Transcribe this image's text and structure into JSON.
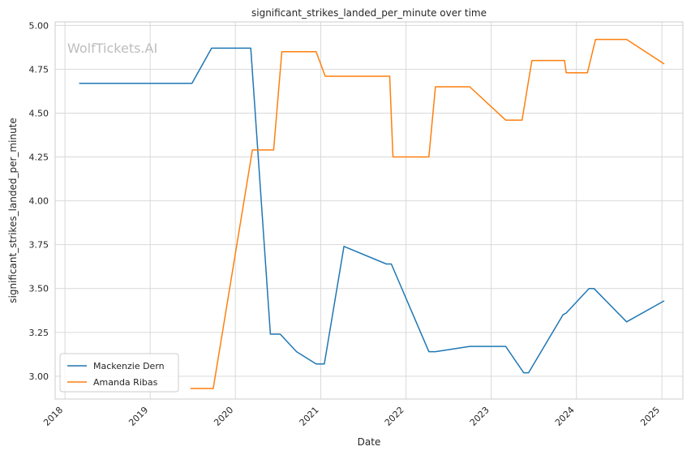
{
  "chart_data": {
    "type": "line",
    "title": "significant_strikes_landed_per_minute over time",
    "xlabel": "Date",
    "ylabel": "significant_strikes_landed_per_minute",
    "watermark": "WolfTickets.AI",
    "x_ticks": [
      "2018",
      "2019",
      "2020",
      "2021",
      "2022",
      "2023",
      "2024",
      "2025"
    ],
    "y_ticks": [
      "3.00",
      "3.25",
      "3.50",
      "3.75",
      "4.00",
      "4.25",
      "4.50",
      "4.75",
      "5.00"
    ],
    "xlim": [
      "2017-11-20",
      "2025-04-01"
    ],
    "ylim": [
      2.87,
      5.02
    ],
    "grid": true,
    "legend_position": "bottom-left",
    "series": [
      {
        "name": "Mackenzie Dern",
        "color": "#1f77b4",
        "points": [
          [
            "2018-03-03",
            4.67
          ],
          [
            "2019-06-29",
            4.67
          ],
          [
            "2019-09-21",
            4.87
          ],
          [
            "2020-03-07",
            4.87
          ],
          [
            "2020-05-30",
            3.24
          ],
          [
            "2020-07-11",
            3.24
          ],
          [
            "2020-09-19",
            3.14
          ],
          [
            "2020-12-12",
            3.07
          ],
          [
            "2021-01-16",
            3.07
          ],
          [
            "2021-04-10",
            3.74
          ],
          [
            "2021-10-09",
            3.64
          ],
          [
            "2021-10-30",
            3.64
          ],
          [
            "2022-04-09",
            3.14
          ],
          [
            "2022-05-07",
            3.14
          ],
          [
            "2022-10-01",
            3.17
          ],
          [
            "2023-03-04",
            3.17
          ],
          [
            "2023-05-20",
            3.02
          ],
          [
            "2023-06-10",
            3.02
          ],
          [
            "2023-11-04",
            3.35
          ],
          [
            "2023-11-18",
            3.36
          ],
          [
            "2024-02-24",
            3.5
          ],
          [
            "2024-03-16",
            3.5
          ],
          [
            "2024-08-03",
            3.31
          ],
          [
            "2025-01-11",
            3.43
          ]
        ]
      },
      {
        "name": "Amanda Ribas",
        "color": "#ff7f0e",
        "points": [
          [
            "2019-06-22",
            2.93
          ],
          [
            "2019-09-28",
            2.93
          ],
          [
            "2020-03-14",
            4.29
          ],
          [
            "2020-06-13",
            4.29
          ],
          [
            "2020-07-18",
            4.85
          ],
          [
            "2020-12-12",
            4.85
          ],
          [
            "2021-01-20",
            4.71
          ],
          [
            "2021-10-23",
            4.71
          ],
          [
            "2021-11-06",
            4.25
          ],
          [
            "2022-04-09",
            4.25
          ],
          [
            "2022-05-07",
            4.65
          ],
          [
            "2022-10-01",
            4.65
          ],
          [
            "2023-03-04",
            4.46
          ],
          [
            "2023-05-13",
            4.46
          ],
          [
            "2023-06-24",
            4.8
          ],
          [
            "2023-11-11",
            4.8
          ],
          [
            "2023-11-18",
            4.73
          ],
          [
            "2024-02-17",
            4.73
          ],
          [
            "2024-03-23",
            4.92
          ],
          [
            "2024-08-03",
            4.92
          ],
          [
            "2025-01-11",
            4.78
          ]
        ]
      }
    ]
  }
}
